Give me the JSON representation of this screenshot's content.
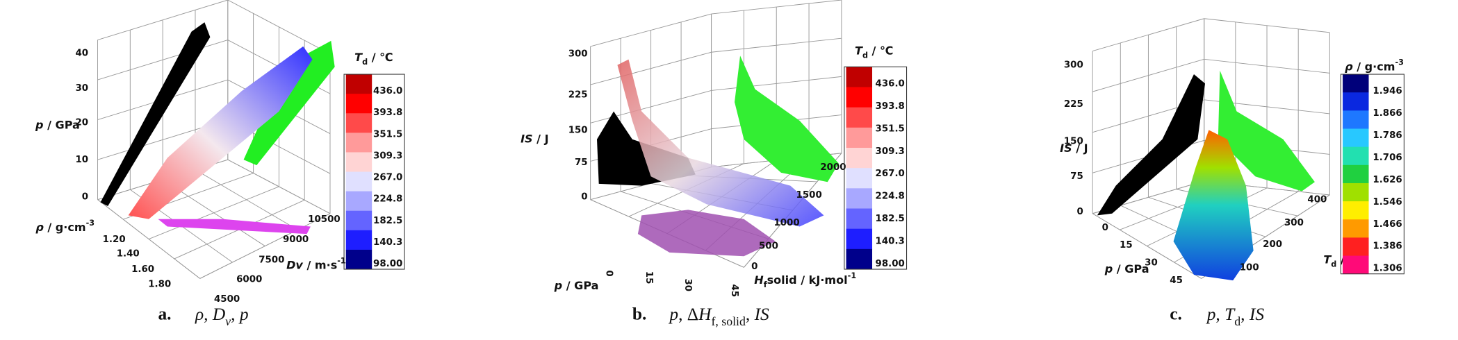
{
  "panels": [
    {
      "z_label": [
        {
          "text": "p",
          "italic": true
        },
        {
          "text": " / GPa"
        }
      ],
      "z_ticks": [
        "0",
        "10",
        "20",
        "30",
        "40"
      ],
      "y_label": [
        {
          "text": "ρ",
          "italic": true
        },
        {
          "text": " / g·cm"
        },
        {
          "text": "-3",
          "sup": true
        }
      ],
      "y_ticks": [
        "1.20",
        "1.40",
        "1.60",
        "1.80"
      ],
      "x_label": [
        {
          "text": "Dv",
          "italic": true
        },
        {
          "text": " / m·s"
        },
        {
          "text": "-1",
          "sup": true
        }
      ],
      "x_ticks": [
        "4500",
        "6000",
        "7500",
        "9000",
        "10500"
      ],
      "colorbar": {
        "title": [
          {
            "text": "T",
            "italic": true
          },
          {
            "text": "d",
            "sub": true
          },
          {
            "text": " / ℃"
          }
        ],
        "ticks": [
          "436.0",
          "393.8",
          "351.5",
          "309.3",
          "267.0",
          "224.8",
          "182.5",
          "140.3",
          "98.00"
        ],
        "colors": [
          "#c00000",
          "#ff0000",
          "#ff4a4a",
          "#ff9a9a",
          "#ffd4d4",
          "#e0e0ff",
          "#a8a8ff",
          "#6464ff",
          "#1e1eff",
          "#00008b"
        ]
      },
      "caption": {
        "letter": "a.",
        "parts": [
          {
            "text": "ρ, ",
            "italic": true
          },
          {
            "text": "D",
            "italic": true
          },
          {
            "text": "v",
            "sub": true,
            "italic": true
          },
          {
            "text": ", "
          },
          {
            "text": "p",
            "italic": true
          }
        ]
      }
    },
    {
      "z_label": [
        {
          "text": "IS",
          "italic": true
        },
        {
          "text": " / J"
        }
      ],
      "z_ticks": [
        "0",
        "75",
        "150",
        "225",
        "300"
      ],
      "y_label": [
        {
          "text": "p",
          "italic": true
        },
        {
          "text": " / GPa"
        }
      ],
      "y_ticks": [
        "0",
        "15",
        "30",
        "45"
      ],
      "x_label": [
        {
          "text": "H",
          "italic": true
        },
        {
          "text": "f",
          "sub": true
        },
        {
          "text": "solid / kJ·mol"
        },
        {
          "text": "-1",
          "sup": true
        }
      ],
      "x_ticks": [
        "0",
        "500",
        "1000",
        "1500",
        "2000"
      ],
      "colorbar": {
        "title": [
          {
            "text": "T",
            "italic": true
          },
          {
            "text": "d",
            "sub": true
          },
          {
            "text": " / ℃"
          }
        ],
        "ticks": [
          "436.0",
          "393.8",
          "351.5",
          "309.3",
          "267.0",
          "224.8",
          "182.5",
          "140.3",
          "98.00"
        ],
        "colors": [
          "#c00000",
          "#ff0000",
          "#ff4a4a",
          "#ff9a9a",
          "#ffd4d4",
          "#e0e0ff",
          "#a8a8ff",
          "#6464ff",
          "#1e1eff",
          "#00008b"
        ]
      },
      "caption": {
        "letter": "b.",
        "parts": [
          {
            "text": "p",
            "italic": true
          },
          {
            "text": ", Δ"
          },
          {
            "text": "H",
            "italic": true
          },
          {
            "text": "f, solid",
            "sub": true
          },
          {
            "text": ", "
          },
          {
            "text": "IS",
            "italic": true
          }
        ]
      }
    },
    {
      "z_label": [
        {
          "text": "IS",
          "italic": true
        },
        {
          "text": " / J"
        }
      ],
      "z_ticks": [
        "0",
        "75",
        "150",
        "225",
        "300"
      ],
      "y_label": [
        {
          "text": "p",
          "italic": true
        },
        {
          "text": " / GPa"
        }
      ],
      "y_ticks": [
        "0",
        "15",
        "30",
        "45"
      ],
      "x_label": [
        {
          "text": "T",
          "italic": true
        },
        {
          "text": "d",
          "sub": true
        },
        {
          "text": " / ℃"
        }
      ],
      "x_ticks": [
        "100",
        "200",
        "300",
        "400"
      ],
      "colorbar": {
        "title": [
          {
            "text": "ρ",
            "italic": true
          },
          {
            "text": " / g·cm"
          },
          {
            "text": "-3",
            "sup": true
          }
        ],
        "ticks": [
          "1.946",
          "1.866",
          "1.786",
          "1.706",
          "1.626",
          "1.546",
          "1.466",
          "1.386",
          "1.306"
        ],
        "colors": [
          "#00007a",
          "#0a28e0",
          "#1e78ff",
          "#28c8ff",
          "#22e0b0",
          "#20d040",
          "#a0e000",
          "#ffee00",
          "#ff9a00",
          "#ff2020",
          "#ff0a78"
        ]
      },
      "caption": {
        "letter": "c.",
        "parts": [
          {
            "text": "p",
            "italic": true
          },
          {
            "text": ", "
          },
          {
            "text": "T",
            "italic": true
          },
          {
            "text": "d",
            "sub": true
          },
          {
            "text": ", "
          },
          {
            "text": "IS",
            "italic": true
          }
        ]
      }
    }
  ]
}
